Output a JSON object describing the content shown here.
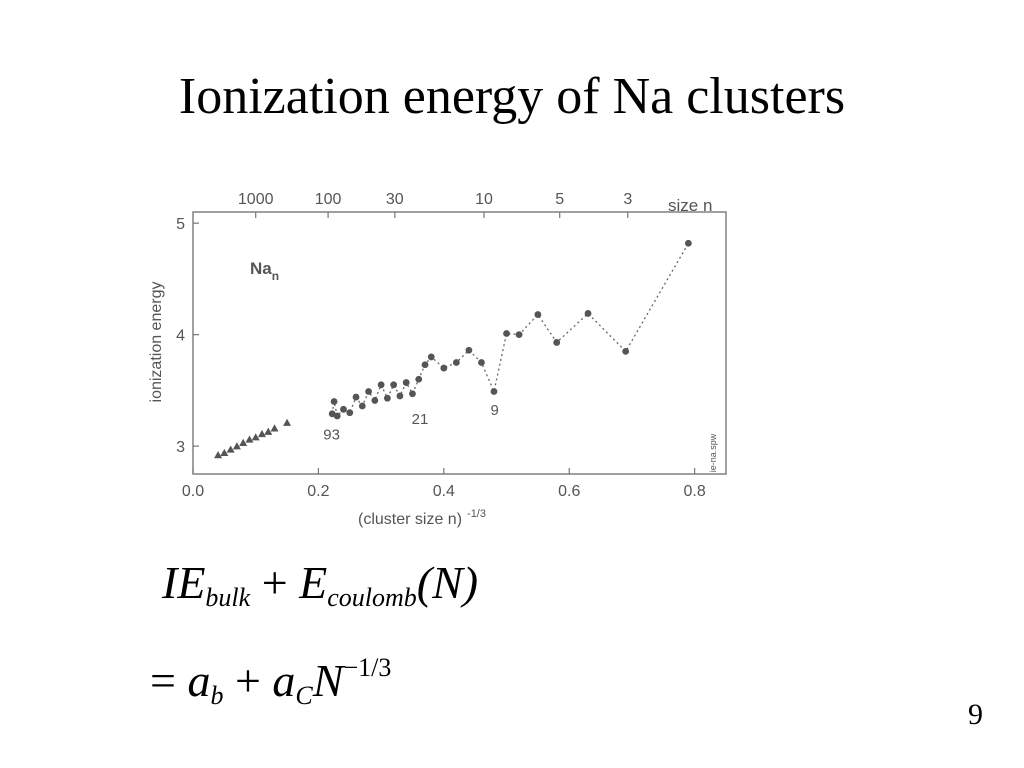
{
  "slide": {
    "title": "Ionization energy of Na clusters",
    "page_number": "9"
  },
  "formula": {
    "line1": {
      "ie": "IE",
      "bulk_sub": "bulk",
      "plus": "+",
      "e": "E",
      "coulomb_sub": "coulomb",
      "arg": "(N)"
    },
    "line2": {
      "equals": "=",
      "a1": "a",
      "b_sub": "b",
      "plus": "+",
      "a2": "a",
      "c_sub": "C",
      "n": "N",
      "exp": "−1/3"
    }
  },
  "chart_data": {
    "type": "scatter",
    "title": "",
    "xlabel": "(cluster size n)",
    "xlabel_superscript": "-1/3",
    "ylabel": "ionization energy",
    "xlim": [
      0.0,
      0.85
    ],
    "ylim": [
      2.75,
      5.1
    ],
    "x_ticks": [
      "0.0",
      "0.2",
      "0.4",
      "0.6",
      "0.8"
    ],
    "y_ticks": [
      "3",
      "4",
      "5"
    ],
    "top_axis": {
      "label": "size n",
      "ticks": [
        {
          "label": "1000",
          "n": 1000
        },
        {
          "label": "100",
          "n": 100
        },
        {
          "label": "30",
          "n": 30
        },
        {
          "label": "10",
          "n": 10
        },
        {
          "label": "5",
          "n": 5
        },
        {
          "label": "3",
          "n": 3
        }
      ]
    },
    "inset_label": "Na",
    "inset_label_sub": "n",
    "side_label": "ie-na.spw",
    "annotations": [
      {
        "text": "93",
        "x": 0.221,
        "y": 3.06
      },
      {
        "text": "21",
        "x": 0.362,
        "y": 3.2
      },
      {
        "text": "9",
        "x": 0.481,
        "y": 3.28
      }
    ],
    "series": [
      {
        "marker": "triangle",
        "x": [
          0.04,
          0.05,
          0.06,
          0.07,
          0.08,
          0.09,
          0.1,
          0.11,
          0.12,
          0.13,
          0.15
        ],
        "y": [
          2.92,
          2.94,
          2.97,
          3.0,
          3.03,
          3.06,
          3.08,
          3.11,
          3.13,
          3.16,
          3.21
        ]
      },
      {
        "marker": "circle",
        "x": [
          0.222,
          0.225,
          0.23,
          0.24,
          0.25,
          0.26,
          0.27,
          0.28,
          0.29,
          0.3,
          0.31,
          0.32,
          0.33,
          0.34,
          0.35,
          0.36,
          0.37,
          0.38,
          0.4,
          0.42,
          0.44,
          0.46,
          0.48,
          0.5,
          0.52,
          0.55,
          0.58,
          0.63,
          0.69,
          0.79
        ],
        "y": [
          3.29,
          3.4,
          3.27,
          3.33,
          3.3,
          3.44,
          3.36,
          3.49,
          3.41,
          3.55,
          3.43,
          3.55,
          3.45,
          3.57,
          3.47,
          3.6,
          3.73,
          3.8,
          3.7,
          3.75,
          3.86,
          3.75,
          3.49,
          4.01,
          4.0,
          4.18,
          3.93,
          4.19,
          3.85,
          4.82
        ]
      }
    ]
  }
}
